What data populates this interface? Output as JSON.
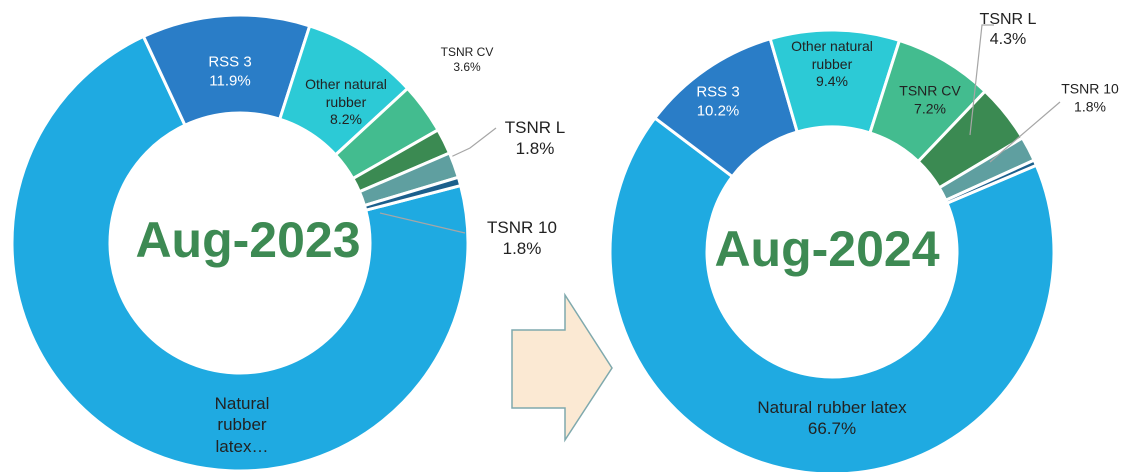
{
  "chart_data": [
    {
      "type": "donut",
      "title": "Aug-2023",
      "categories": [
        "Natural rubber latex…",
        "RSS 3",
        "Other natural rubber",
        "TSNR CV",
        "TSNR L",
        "TSNR 10",
        null
      ],
      "values": [
        72.1,
        11.9,
        8.2,
        3.6,
        1.8,
        1.8,
        0.6
      ],
      "value_labels": [
        null,
        "11.9%",
        "8.2%",
        "3.6%",
        "1.8%",
        "1.8%",
        null
      ],
      "colors": [
        "#1faae1",
        "#2a7dc7",
        "#2ccad6",
        "#43bc8f",
        "#3b8a52",
        "#5f9fa0",
        "#1c5f8c"
      ]
    },
    {
      "type": "donut",
      "title": "Aug-2024",
      "categories": [
        "Natural rubber latex",
        "RSS 3",
        "Other natural rubber",
        "TSNR CV",
        "TSNR L",
        "TSNR 10",
        null
      ],
      "values": [
        66.7,
        10.2,
        9.4,
        7.2,
        4.3,
        1.8,
        0.4
      ],
      "value_labels": [
        "66.7%",
        "10.2%",
        "9.4%",
        "7.2%",
        "4.3%",
        "1.8%",
        null
      ],
      "colors": [
        "#1faae1",
        "#2a7dc7",
        "#2ccad6",
        "#43bc8f",
        "#3b8a52",
        "#5f9fa0",
        "#1c5f8c"
      ]
    }
  ]
}
